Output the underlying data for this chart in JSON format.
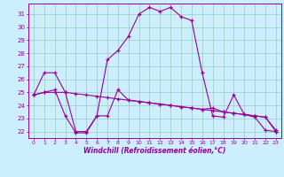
{
  "xlabel": "Windchill (Refroidissement éolien,°C)",
  "bg_color": "#cceeff",
  "line_color": "#990099",
  "grid_color": "#99ccbb",
  "ylim": [
    21.5,
    31.8
  ],
  "xlim": [
    -0.5,
    23.5
  ],
  "yticks": [
    22,
    23,
    24,
    25,
    26,
    27,
    28,
    29,
    30,
    31
  ],
  "xticks": [
    0,
    1,
    2,
    3,
    4,
    5,
    6,
    7,
    8,
    9,
    10,
    11,
    12,
    13,
    14,
    15,
    16,
    17,
    18,
    19,
    20,
    21,
    22,
    23
  ],
  "line1_x": [
    0,
    1,
    2,
    3,
    4,
    5,
    6,
    7,
    8,
    9,
    10,
    11,
    12,
    13,
    14,
    15,
    16,
    17,
    18,
    19,
    20,
    21,
    22,
    23
  ],
  "line1_y": [
    24.8,
    26.5,
    26.5,
    25.0,
    22.0,
    22.0,
    23.2,
    27.5,
    28.2,
    29.3,
    31.0,
    31.5,
    31.2,
    31.5,
    30.8,
    30.5,
    26.5,
    23.2,
    23.1,
    24.8,
    23.3,
    23.1,
    22.1,
    22.0
  ],
  "line2_x": [
    0,
    1,
    2,
    3,
    4,
    5,
    6,
    7,
    8,
    9,
    10,
    11,
    12,
    13,
    14,
    15,
    16,
    17,
    18,
    19,
    20,
    21,
    22,
    23
  ],
  "line2_y": [
    24.8,
    25.0,
    25.0,
    25.0,
    24.9,
    24.8,
    24.7,
    24.6,
    24.5,
    24.4,
    24.3,
    24.2,
    24.1,
    24.0,
    23.9,
    23.8,
    23.7,
    23.6,
    23.5,
    23.4,
    23.3,
    23.2,
    23.1,
    22.1
  ],
  "line3_x": [
    0,
    1,
    2,
    3,
    4,
    5,
    6,
    7,
    8,
    9,
    10,
    11,
    12,
    13,
    14,
    15,
    16,
    17,
    18,
    19,
    20,
    21,
    22,
    23
  ],
  "line3_y": [
    24.8,
    25.0,
    25.2,
    23.2,
    21.9,
    21.9,
    23.2,
    23.2,
    25.2,
    24.4,
    24.3,
    24.2,
    24.1,
    24.0,
    23.9,
    23.8,
    23.7,
    23.8,
    23.5,
    23.4,
    23.3,
    23.2,
    23.1,
    22.0
  ]
}
